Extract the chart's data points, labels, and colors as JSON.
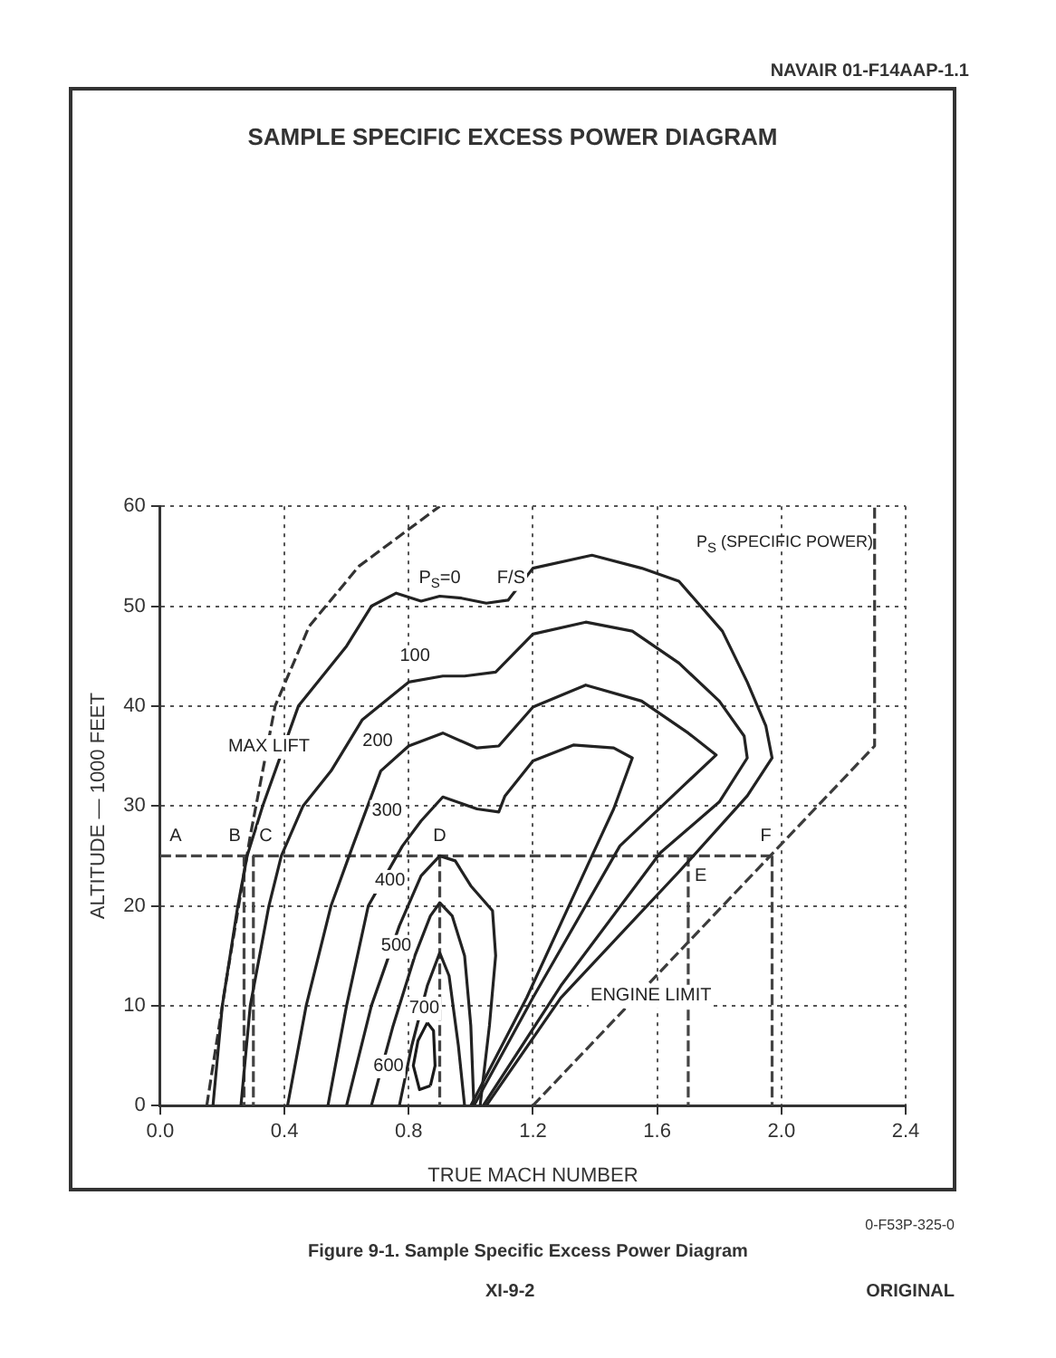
{
  "chart_data": {
    "type": "line",
    "title": "SAMPLE SPECIFIC EXCESS POWER DIAGRAM",
    "xlabel": "TRUE MACH NUMBER",
    "ylabel": "ALTITUDE — 1000 FEET",
    "xlim": [
      0,
      2.4
    ],
    "xticks": [
      {
        "value": 0,
        "label": "0.0"
      },
      {
        "value": 0.4,
        "label": "0.4"
      },
      {
        "value": 0.8,
        "label": "0.8"
      },
      {
        "value": 1.2,
        "label": "1.2"
      },
      {
        "value": 1.6,
        "label": "1.6"
      },
      {
        "value": 2,
        "label": "2.0"
      },
      {
        "value": 2.4,
        "label": "2.4"
      }
    ],
    "ylim": [
      0,
      60
    ],
    "yticks": [
      0,
      10,
      20,
      30,
      40,
      50,
      60
    ],
    "grid": true,
    "series": [
      {
        "type": "line",
        "color": "#222222",
        "line_style": "solid",
        "x": [
          0.17,
          0.2,
          0.25,
          0.28,
          0.33,
          0.445,
          0.6,
          0.68,
          0.76,
          0.84,
          0.9,
          0.97,
          1.05,
          1.12,
          1.2,
          1.39,
          1.55,
          1.67,
          1.81,
          1.89,
          1.95,
          1.97,
          1.89,
          1.67,
          1.29,
          1.05
        ],
        "values": [
          0,
          10,
          20,
          25,
          30,
          40,
          46,
          50,
          51.3,
          50.5,
          51,
          50.8,
          50.3,
          50.6,
          53.8,
          55.1,
          53.8,
          52.5,
          47.5,
          42.4,
          38,
          34.8,
          31,
          23.4,
          10.8,
          0
        ]
      },
      {
        "type": "line",
        "color": "#222222",
        "line_style": "solid",
        "x": [
          0.26,
          0.29,
          0.35,
          0.39,
          0.46,
          0.55,
          0.65,
          0.8,
          0.91,
          0.98,
          1.08,
          1.2,
          1.37,
          1.52,
          1.67,
          1.8,
          1.88,
          1.89,
          1.8,
          1.61,
          1.29,
          1.04
        ],
        "values": [
          0,
          10,
          20,
          25,
          30,
          33.5,
          38.6,
          42.4,
          43,
          43,
          43.4,
          47.2,
          48.4,
          47.5,
          44.3,
          40.5,
          37,
          34.8,
          30.4,
          25.3,
          12,
          0
        ]
      },
      {
        "type": "line",
        "color": "#222222",
        "line_style": "solid",
        "x": [
          0.41,
          0.47,
          0.55,
          0.62,
          0.71,
          0.8,
          0.91,
          1.02,
          1.09,
          1.2,
          1.37,
          1.55,
          1.7,
          1.79,
          1.67,
          1.48,
          1.2,
          1.01
        ],
        "values": [
          0,
          10,
          20,
          26,
          33.5,
          36,
          37.3,
          35.8,
          36,
          39.9,
          42.1,
          40.5,
          37.3,
          35.1,
          31.6,
          26,
          10.8,
          0
        ]
      },
      {
        "type": "line",
        "color": "#222222",
        "line_style": "solid",
        "x": [
          0.54,
          0.6,
          0.67,
          0.78,
          0.84,
          0.91,
          1.02,
          1.09,
          1.11,
          1.2,
          1.33,
          1.46,
          1.52,
          1.46,
          1.39,
          1.18,
          1.0
        ],
        "values": [
          0,
          10,
          20,
          26,
          28.5,
          30.9,
          29.7,
          29.4,
          31,
          34.5,
          36.1,
          35.8,
          34.8,
          29.7,
          25,
          10.8,
          0
        ]
      },
      {
        "type": "line",
        "color": "#222222",
        "line_style": "solid",
        "x": [
          0.6,
          0.68,
          0.77,
          0.84,
          0.9,
          0.95,
          1.0,
          1.07,
          1.08,
          1.06,
          1.03
        ],
        "values": [
          0,
          10,
          18,
          23,
          25,
          24.5,
          22,
          19.5,
          15,
          8,
          0
        ]
      },
      {
        "type": "line",
        "color": "#222222",
        "line_style": "solid",
        "x": [
          0.68,
          0.75,
          0.82,
          0.87,
          0.9,
          0.94,
          0.98,
          1.0,
          1.01
        ],
        "values": [
          0,
          8,
          15,
          19,
          20.3,
          19,
          15,
          8,
          0
        ]
      },
      {
        "type": "line",
        "color": "#222222",
        "line_style": "solid",
        "x": [
          0.77,
          0.81,
          0.86,
          0.9,
          0.93,
          0.96,
          0.98
        ],
        "values": [
          0,
          6,
          12,
          15.3,
          13,
          6,
          0
        ]
      },
      {
        "type": "line",
        "color": "#1a1a1a",
        "line_style": "solid",
        "x": [
          0.86,
          0.83,
          0.815,
          0.835,
          0.87
        ],
        "values": [
          8.3,
          6.5,
          4,
          1.6,
          2
        ]
      },
      {
        "type": "line",
        "color": "#1a1a1a",
        "line_style": "solid",
        "x": [
          0.86,
          0.88,
          0.885,
          0.87
        ],
        "values": [
          8.3,
          7.5,
          4,
          2
        ]
      },
      {
        "type": "line",
        "color": "#333333",
        "line_style": "dashed",
        "x": [
          0.15,
          0.21,
          0.29,
          0.37,
          0.48,
          0.64,
          0.9
        ],
        "values": [
          0,
          12,
          27,
          40,
          48,
          54,
          60
        ]
      },
      {
        "type": "line",
        "color": "#3c3c3c",
        "line_style": "dashed",
        "x": [
          1.2,
          2.3,
          2.3
        ],
        "values": [
          0,
          36,
          60
        ]
      },
      {
        "type": "line",
        "color": "#444444",
        "line_style": "dashed",
        "x": [
          0,
          1.97
        ],
        "values": [
          25,
          25
        ]
      },
      {
        "type": "line",
        "color": "#444444",
        "line_style": "dashed",
        "x": [
          0.27,
          0.27
        ],
        "values": [
          25,
          0
        ]
      },
      {
        "type": "line",
        "color": "#444444",
        "line_style": "dashed",
        "x": [
          0.3,
          0.3
        ],
        "values": [
          25,
          0
        ]
      },
      {
        "type": "line",
        "color": "#444444",
        "line_style": "dashed",
        "x": [
          0.9,
          0.9
        ],
        "values": [
          25,
          0
        ]
      },
      {
        "type": "line",
        "color": "#444444",
        "line_style": "dashed",
        "x": [
          1.7,
          1.7
        ],
        "values": [
          25,
          0
        ]
      },
      {
        "type": "line",
        "color": "#444444",
        "line_style": "dashed",
        "x": [
          1.97,
          1.97
        ],
        "values": [
          25,
          0
        ]
      }
    ],
    "annotations": [
      {
        "text": "P$_{S}$=0",
        "x": 0.9,
        "y": 52.8
      },
      {
        "text": "F/S",
        "x": 1.13,
        "y": 52.8
      },
      {
        "text": "100",
        "x": 0.82,
        "y": 45
      },
      {
        "text": "200",
        "x": 0.7,
        "y": 36.5
      },
      {
        "text": "300",
        "x": 0.73,
        "y": 29.5
      },
      {
        "text": "400",
        "x": 0.74,
        "y": 22.5
      },
      {
        "text": "500",
        "x": 0.76,
        "y": 16
      },
      {
        "text": "600",
        "x": 0.735,
        "y": 4
      },
      {
        "text": "700",
        "x": 0.85,
        "y": 9.8
      },
      {
        "text": "MAX LIFT",
        "x": 0.35,
        "y": 36
      },
      {
        "text": "ENGINE LIMIT",
        "x": 1.58,
        "y": 11
      },
      {
        "text": "A",
        "x": 0.05,
        "y": 27
      },
      {
        "text": "B",
        "x": 0.24,
        "y": 27
      },
      {
        "text": "C",
        "x": 0.34,
        "y": 27
      },
      {
        "text": "D",
        "x": 0.9,
        "y": 27
      },
      {
        "text": "E",
        "x": 1.74,
        "y": 23
      },
      {
        "text": "F",
        "x": 1.95,
        "y": 27
      },
      "NAVAIR 01-F14AAP-1.1",
      "0-F53P-325-0",
      "Figure 9-1. Sample Specific Excess Power Diagram",
      "XI-9-2",
      "ORIGINAL",
      "P$_{S}$ (SPECIFIC POWER)"
    ]
  }
}
